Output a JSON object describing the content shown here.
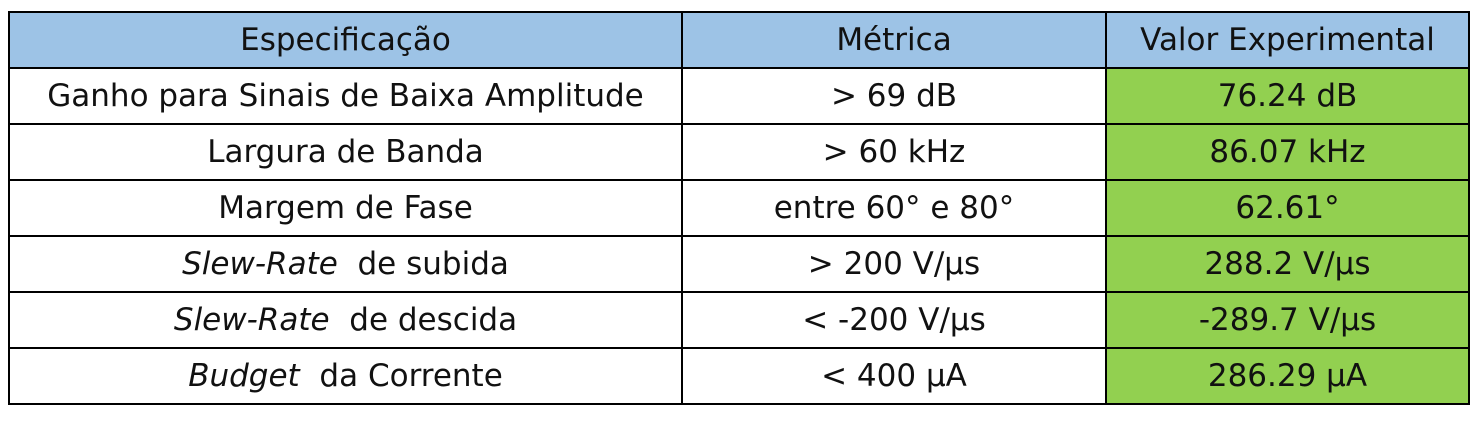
{
  "table": {
    "headers": [
      "Especificação",
      "Métrica",
      "Valor Experimental"
    ],
    "rows": [
      {
        "spec": {
          "italic": "",
          "rest": "Ganho para Sinais de Baixa Amplitude"
        },
        "metric": "> 69 dB",
        "value": "76.24 dB"
      },
      {
        "spec": {
          "italic": "",
          "rest": "Largura de Banda"
        },
        "metric": "> 60 kHz",
        "value": "86.07 kHz"
      },
      {
        "spec": {
          "italic": "",
          "rest": "Margem de Fase"
        },
        "metric": "entre 60° e 80°",
        "value": "62.61°"
      },
      {
        "spec": {
          "italic": "Slew-Rate",
          "rest": "  de subida"
        },
        "metric": "> 200 V/µs",
        "value": "288.2 V/µs"
      },
      {
        "spec": {
          "italic": "Slew-Rate",
          "rest": "  de descida"
        },
        "metric": "< -200 V/µs",
        "value": "-289.7 V/µs"
      },
      {
        "spec": {
          "italic": "Budget",
          "rest": "  da Corrente"
        },
        "metric": "< 400 µA",
        "value": "286.29 µA"
      }
    ]
  },
  "colors": {
    "header_bg": "#9dc3e6",
    "result_bg": "#92d050",
    "border": "#000000"
  }
}
